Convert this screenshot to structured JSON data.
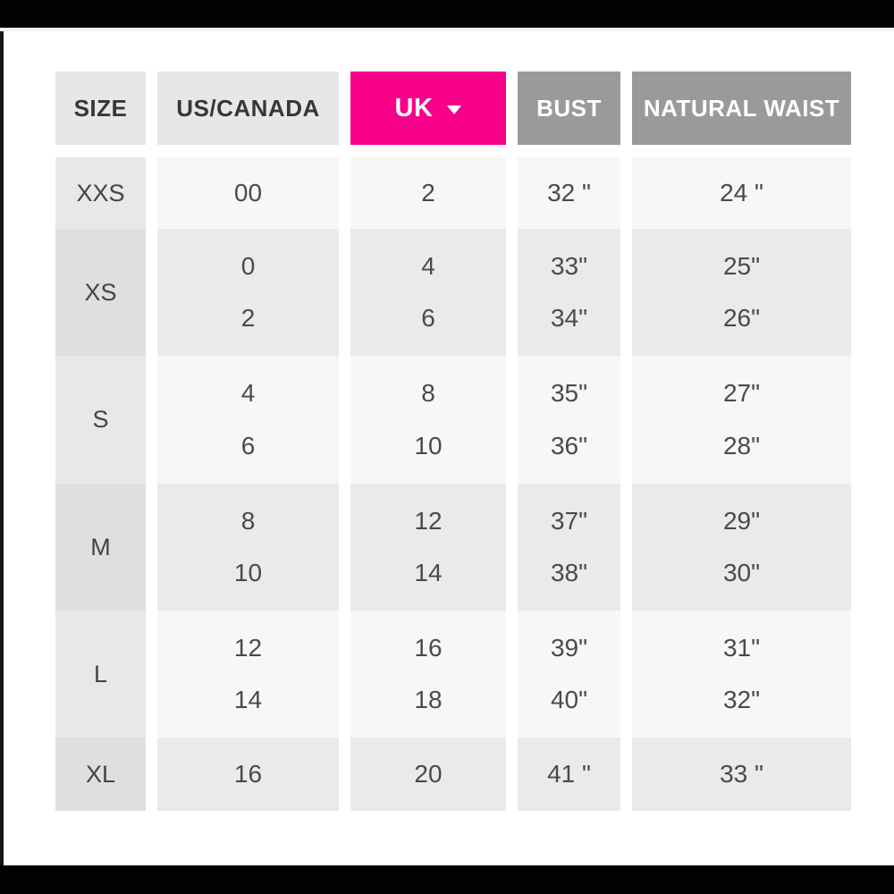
{
  "table": {
    "columns": [
      {
        "label": "SIZE"
      },
      {
        "label": "US/CANADA"
      },
      {
        "label": "UK",
        "dropdown": true,
        "icon": "caret-down-icon"
      },
      {
        "label": "BUST"
      },
      {
        "label": "NATURAL WAIST"
      }
    ],
    "rows": [
      {
        "size": "XXS",
        "us_canada": [
          "00"
        ],
        "uk": [
          "2"
        ],
        "bust": [
          "32 \""
        ],
        "natural_waist": [
          "24 \""
        ]
      },
      {
        "size": "XS",
        "us_canada": [
          "0",
          "2"
        ],
        "uk": [
          "4",
          "6"
        ],
        "bust": [
          "33\"",
          "34\""
        ],
        "natural_waist": [
          "25\"",
          "26\""
        ]
      },
      {
        "size": "S",
        "us_canada": [
          "4",
          "6"
        ],
        "uk": [
          "8",
          "10"
        ],
        "bust": [
          "35\"",
          "36\""
        ],
        "natural_waist": [
          "27\"",
          "28\""
        ]
      },
      {
        "size": "M",
        "us_canada": [
          "8",
          "10"
        ],
        "uk": [
          "12",
          "14"
        ],
        "bust": [
          "37\"",
          "38\""
        ],
        "natural_waist": [
          "29\"",
          "30\""
        ]
      },
      {
        "size": "L",
        "us_canada": [
          "12",
          "14"
        ],
        "uk": [
          "16",
          "18"
        ],
        "bust": [
          "39\"",
          "40\""
        ],
        "natural_waist": [
          "31\"",
          "32\""
        ]
      },
      {
        "size": "XL",
        "us_canada": [
          "16"
        ],
        "uk": [
          "20"
        ],
        "bust": [
          "41 \""
        ],
        "natural_waist": [
          "33 \""
        ]
      }
    ],
    "colors": {
      "accent_pink": "#f8018b",
      "header_gray": "#9b9999",
      "header_light": "#e8e7e7",
      "row_light": "#f7f7f6",
      "row_dark": "#ebeaea",
      "size_col_light": "#e9e8e8",
      "size_col_dark": "#e0dfdf",
      "letterbox_black": "#030303"
    }
  }
}
